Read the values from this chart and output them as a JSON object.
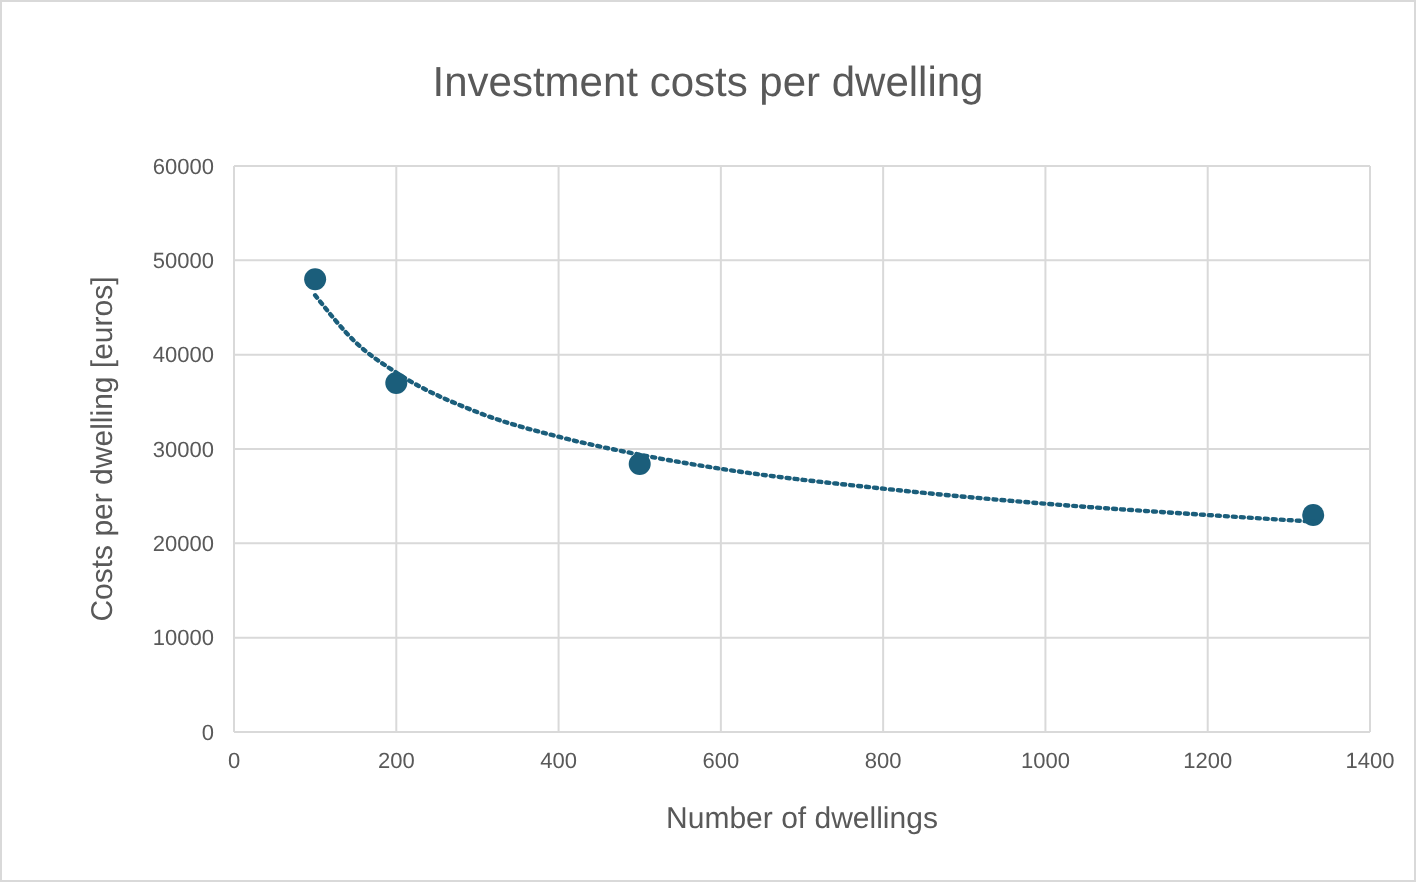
{
  "chart_data": {
    "type": "scatter",
    "title": "Investment costs per dwelling",
    "xlabel": "Number of dwellings",
    "ylabel": "Costs per dwelling [euros]",
    "xlim": [
      0,
      1400
    ],
    "xticks": [
      0,
      200,
      400,
      600,
      800,
      1000,
      1200,
      1400
    ],
    "ylim": [
      0,
      60000
    ],
    "yticks": [
      0,
      10000,
      20000,
      30000,
      40000,
      50000,
      60000
    ],
    "grid": true,
    "series": [
      {
        "color": "#1b5e7b",
        "marker": "circle",
        "x": [
          100,
          200,
          500,
          1330
        ],
        "values": [
          48000,
          37000,
          28400,
          23000
        ]
      },
      {
        "type": "line",
        "color": "#1b5e7b",
        "marker": "none",
        "line_style": "dotted",
        "x": [
          100,
          150,
          200,
          300,
          400,
          500,
          600,
          800,
          1000,
          1200,
          1330
        ],
        "values": [
          46300,
          41300,
          38100,
          33900,
          31300,
          29400,
          27900,
          25800,
          24200,
          23000,
          22300
        ]
      }
    ]
  }
}
